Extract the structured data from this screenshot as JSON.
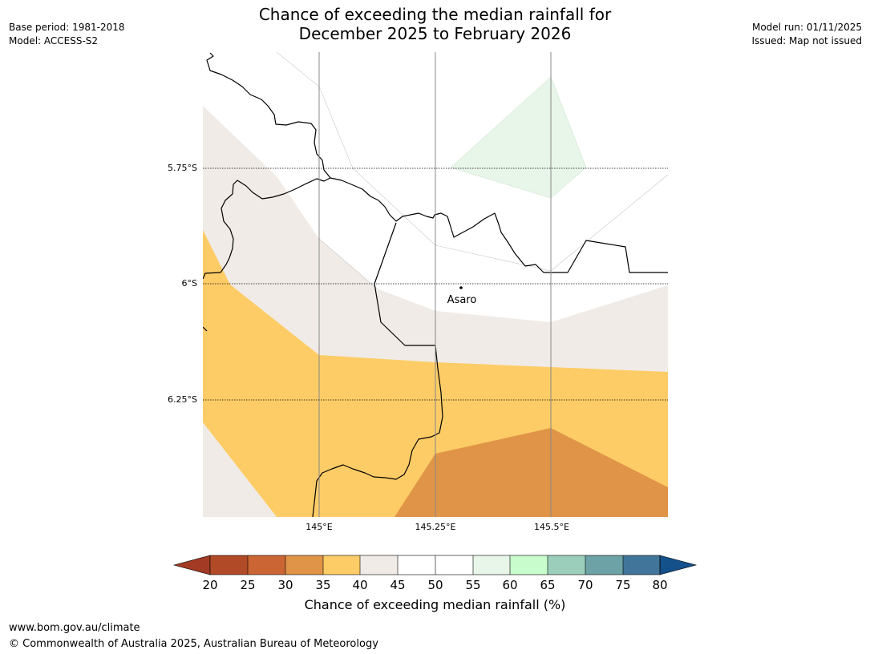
{
  "title": {
    "line1": "Chance of exceeding the median rainfall for",
    "line2": "December 2025 to February 2026"
  },
  "meta_left": {
    "base_period": "Base period: 1981-2018",
    "model": "Model: ACCESS-S2"
  },
  "meta_right": {
    "model_run": "Model run: 01/11/2025",
    "issued": "Issued: Map not issued"
  },
  "map": {
    "lat_labels": [
      "5.75°S",
      "6°S",
      "6.25°S"
    ],
    "lon_labels": [
      "145°E",
      "145.25°E",
      "145.5°E"
    ],
    "place": {
      "name": "Asaro"
    }
  },
  "colorbar": {
    "ticks": [
      "20",
      "25",
      "30",
      "35",
      "40",
      "45",
      "50",
      "55",
      "60",
      "65",
      "70",
      "75",
      "80"
    ],
    "colors": {
      "below_20": "#a33a24",
      "c20_25": "#b14a27",
      "c25_30": "#cc6534",
      "c30_35": "#e09447",
      "c35_40": "#fdcc66",
      "c40_45": "#f0ebe6",
      "c45_50": "#ffffff",
      "c50_55": "#ffffff",
      "c55_60": "#e8f5e9",
      "c60_65": "#c8fccc",
      "c65_70": "#9ccfbb",
      "c70_75": "#6da3a6",
      "c75_80": "#417599",
      "above_80": "#14508a"
    },
    "label": "Chance of exceeding median rainfall (%)"
  },
  "footer": {
    "url": "www.bom.gov.au/climate",
    "copyright": "© Commonwealth of Australia 2025, Australian Bureau of Meteorology"
  }
}
